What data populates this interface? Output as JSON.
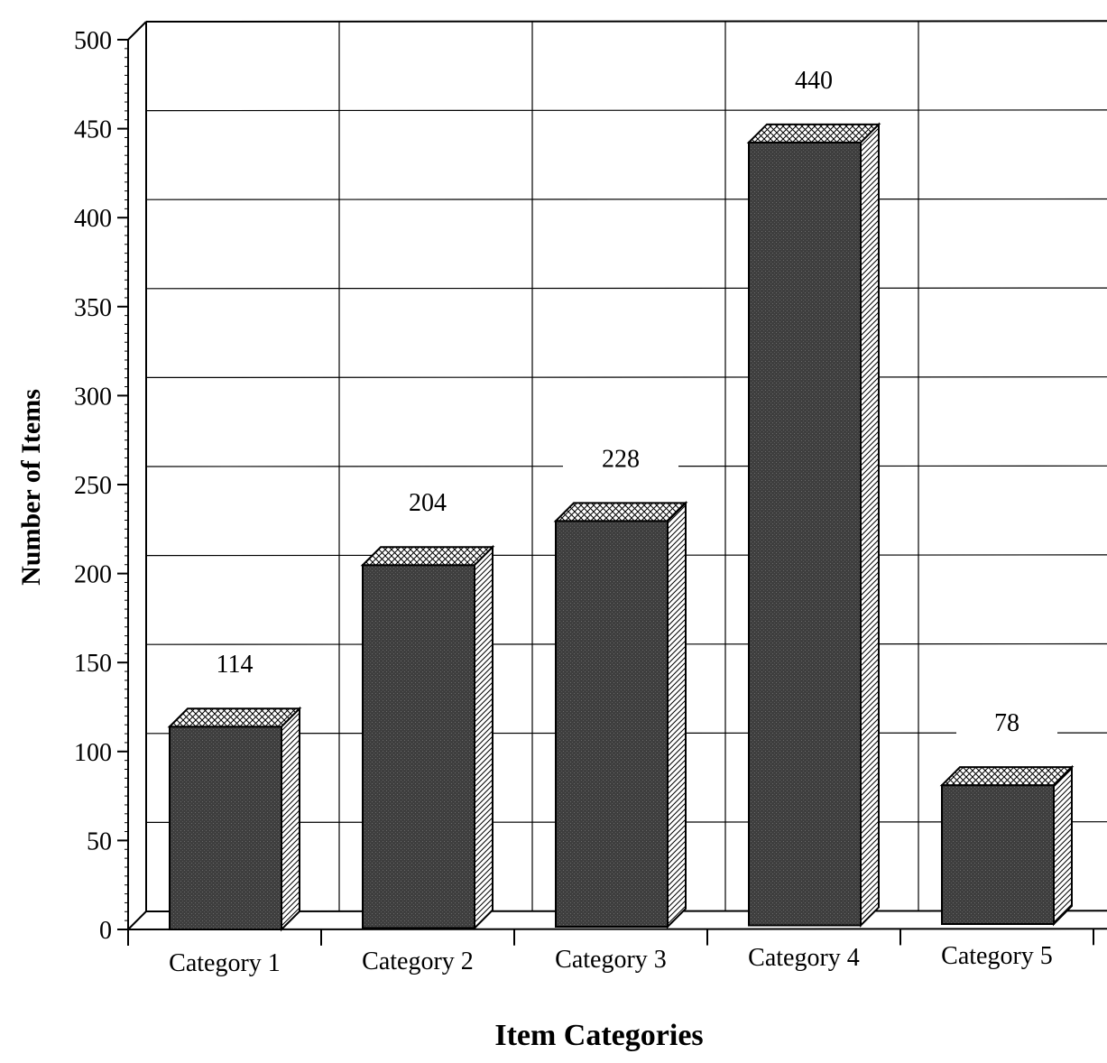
{
  "chart_data": {
    "type": "bar",
    "title": "",
    "xlabel": "Item Categories",
    "ylabel": "Number of Items",
    "categories": [
      "Category 1",
      "Category 2",
      "Category 3",
      "Category 4",
      "Category 5"
    ],
    "values": [
      114,
      204,
      228,
      440,
      78
    ],
    "data_labels": [
      "114",
      "204",
      "228",
      "440",
      "78"
    ],
    "ylim": [
      0,
      500
    ],
    "yticks": [
      0,
      50,
      100,
      150,
      200,
      250,
      300,
      350,
      400,
      450,
      500
    ],
    "ytick_labels": [
      "0",
      "50",
      "100",
      "150",
      "200",
      "250",
      "300",
      "350",
      "400",
      "450",
      "500"
    ],
    "grid": true,
    "style": "3d",
    "bar_color": "#4a4a4a"
  }
}
